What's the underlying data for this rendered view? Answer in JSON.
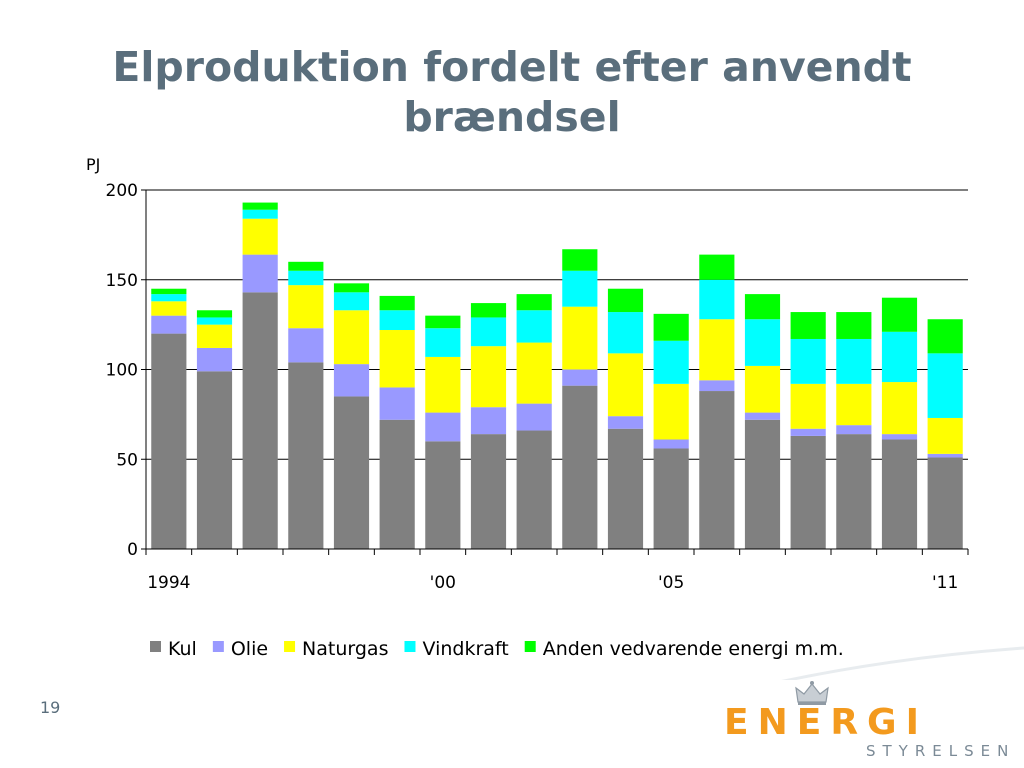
{
  "slide": {
    "title_line1": "Elproduktion fordelt efter anvendt",
    "title_line2": "brændsel",
    "page_number": "19"
  },
  "logo": {
    "word": "ENERGI",
    "sub": "STYRELSEN"
  },
  "chart_data": {
    "type": "bar",
    "stacked": true,
    "ylabel": "PJ",
    "ylim": [
      0,
      200
    ],
    "yticks": [
      0,
      50,
      100,
      150,
      200
    ],
    "grid": true,
    "legend_position": "bottom",
    "categories": [
      "1994",
      "1995",
      "1996",
      "1997",
      "1998",
      "1999",
      "2000",
      "2001",
      "2002",
      "2003",
      "2004",
      "2005",
      "2006",
      "2007",
      "2008",
      "2009",
      "2010",
      "2011"
    ],
    "x_tick_labels": [
      {
        "index": 0,
        "label": "1994"
      },
      {
        "index": 6,
        "label": "'00"
      },
      {
        "index": 11,
        "label": "'05"
      },
      {
        "index": 17,
        "label": "'11"
      }
    ],
    "series": [
      {
        "name": "Kul",
        "color": "#808080",
        "values": [
          120,
          99,
          143,
          104,
          85,
          72,
          60,
          64,
          66,
          91,
          67,
          56,
          88,
          72,
          63,
          64,
          61,
          51
        ]
      },
      {
        "name": "Olie",
        "color": "#9999ff",
        "values": [
          10,
          13,
          21,
          19,
          18,
          18,
          16,
          15,
          15,
          9,
          7,
          5,
          6,
          4,
          4,
          5,
          3,
          2
        ]
      },
      {
        "name": "Naturgas",
        "color": "#ffff00",
        "values": [
          8,
          13,
          20,
          24,
          30,
          32,
          31,
          34,
          34,
          35,
          35,
          31,
          34,
          26,
          25,
          23,
          29,
          20
        ]
      },
      {
        "name": "Vindkraft",
        "color": "#00ffff",
        "values": [
          4,
          4,
          5,
          8,
          10,
          11,
          16,
          16,
          18,
          20,
          23,
          24,
          22,
          26,
          25,
          25,
          28,
          36
        ]
      },
      {
        "name": "Anden vedvarende energi m.m.",
        "color": "#00ff00",
        "values": [
          3,
          4,
          4,
          5,
          5,
          8,
          7,
          8,
          9,
          12,
          13,
          15,
          14,
          14,
          15,
          15,
          19,
          19
        ]
      }
    ]
  }
}
